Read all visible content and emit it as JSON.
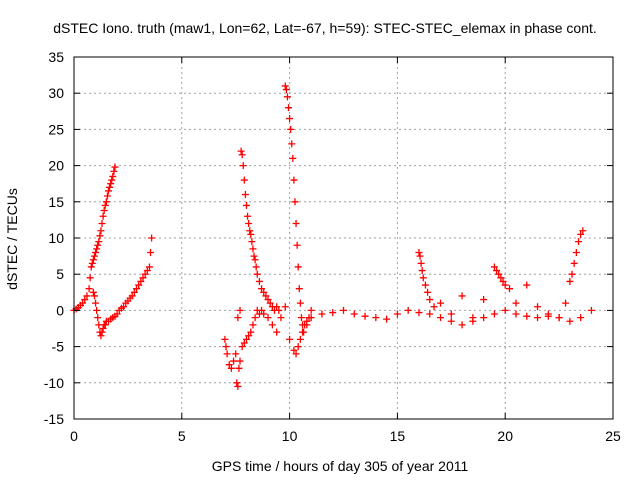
{
  "chart_data": {
    "type": "scatter",
    "title": "dSTEC Iono. truth (maw1, Lon=62, Lat=-67, h=59): STEC-STEC_elemax in phase cont.",
    "xlabel": "GPS time / hours of day 305 of year 2011",
    "ylabel": "dSTEC  / TECUs",
    "xlim": [
      0,
      25
    ],
    "ylim": [
      -15,
      35
    ],
    "xticks": [
      0,
      5,
      10,
      15,
      20,
      25
    ],
    "yticks": [
      -15,
      -10,
      -5,
      0,
      5,
      10,
      15,
      20,
      25,
      30,
      35
    ],
    "grid": true,
    "marker": "+",
    "color": "#ff0000",
    "series": [
      {
        "x": [
          0.0,
          0.1,
          0.2,
          0.3,
          0.4,
          0.5,
          0.6,
          0.7,
          0.75,
          0.8,
          0.85,
          0.9,
          0.95,
          1.0,
          1.05,
          1.1,
          1.15,
          1.2,
          1.25,
          1.3,
          1.35,
          1.4,
          1.45,
          1.5,
          1.55,
          1.6,
          1.65,
          1.7,
          1.75,
          1.8,
          1.85,
          1.9
        ],
        "y": [
          0.0,
          0.2,
          0.4,
          0.7,
          1.0,
          1.5,
          2.0,
          3.0,
          4.5,
          6.0,
          6.5,
          7.0,
          7.5,
          8.0,
          8.5,
          9.0,
          9.5,
          10.3,
          11.0,
          12.0,
          13.0,
          13.8,
          14.5,
          15.0,
          15.8,
          16.5,
          17.0,
          17.5,
          18.0,
          18.5,
          19.2,
          19.8
        ]
      },
      {
        "x": [
          0.9,
          0.95,
          1.0,
          1.05,
          1.1,
          1.15,
          1.2,
          1.25,
          1.3,
          1.35,
          1.4,
          1.45,
          1.5,
          1.6,
          1.7,
          1.8,
          1.9,
          2.0,
          2.1,
          2.2,
          2.3,
          2.4,
          2.5,
          2.6,
          2.7,
          2.8,
          2.9,
          3.0,
          3.1,
          3.2,
          3.3,
          3.4,
          3.5,
          3.55,
          3.6
        ],
        "y": [
          2.5,
          2.0,
          1.0,
          0.0,
          -1.0,
          -2.0,
          -3.0,
          -3.5,
          -3.0,
          -2.5,
          -2.0,
          -2.0,
          -1.5,
          -1.5,
          -1.2,
          -1.0,
          -0.8,
          -0.5,
          0.0,
          0.3,
          0.5,
          1.0,
          1.3,
          1.7,
          2.0,
          2.5,
          3.0,
          3.5,
          4.0,
          4.5,
          5.0,
          5.5,
          6.0,
          8.0,
          10.0
        ]
      },
      {
        "x": [
          7.0,
          7.05,
          7.1,
          7.2,
          7.3,
          7.4,
          7.5,
          7.55,
          7.6,
          7.65,
          7.7,
          7.8,
          7.9,
          8.0,
          8.1,
          8.2,
          8.3,
          8.4,
          8.5,
          8.6,
          8.7,
          8.8,
          9.0,
          9.2,
          9.4,
          9.6,
          9.8,
          10.0,
          10.2,
          10.3,
          10.4,
          10.5,
          10.6,
          10.8,
          11.0,
          11.5,
          12.0,
          12.5,
          13.0,
          13.5,
          14.0,
          14.5,
          15.0,
          15.5,
          16.0,
          16.5,
          17.0,
          17.5,
          18.0,
          18.5,
          19.0,
          19.5,
          20.0,
          20.5,
          21.0,
          21.5,
          22.0,
          22.5,
          23.0,
          23.5,
          24.0
        ],
        "y": [
          -4.0,
          -5.0,
          -6.0,
          -7.5,
          -8.0,
          -7.0,
          -6.0,
          -10.0,
          -10.5,
          -8.0,
          -7.0,
          -5.0,
          -4.5,
          -4.0,
          -3.5,
          -3.0,
          -2.0,
          -1.0,
          0.0,
          -0.5,
          0.0,
          -0.5,
          -1.0,
          -2.0,
          -3.0,
          -1.0,
          0.5,
          -4.0,
          -5.5,
          -6.0,
          -5.0,
          -4.0,
          -3.0,
          -2.0,
          -1.0,
          -0.5,
          -0.3,
          0.0,
          -0.5,
          -0.8,
          -1.0,
          -1.2,
          -0.5,
          0.0,
          -0.3,
          -0.5,
          -1.0,
          -1.5,
          -2.0,
          -1.5,
          -1.0,
          -0.5,
          0.0,
          -0.5,
          -0.8,
          -1.0,
          -0.8,
          -1.0,
          -1.5,
          -1.0,
          0.0
        ]
      },
      {
        "x": [
          7.6,
          7.7,
          7.75,
          7.8,
          7.85,
          7.9,
          7.95,
          8.0,
          8.05,
          8.1,
          8.15,
          8.2,
          8.25,
          8.3,
          8.35,
          8.4,
          8.45,
          8.5,
          8.6,
          8.7,
          8.8,
          8.9,
          9.0,
          9.1,
          9.2,
          9.3,
          9.4,
          9.5
        ],
        "y": [
          -1.0,
          0.0,
          22.0,
          21.5,
          20.0,
          18.0,
          16.0,
          14.5,
          13.0,
          12.0,
          11.0,
          10.5,
          9.5,
          8.5,
          7.5,
          7.0,
          6.0,
          5.0,
          4.0,
          3.0,
          2.5,
          2.0,
          1.5,
          1.0,
          0.5,
          0.0,
          0.5,
          0.0
        ]
      },
      {
        "x": [
          9.8,
          9.85,
          9.9,
          9.95,
          10.0,
          10.05,
          10.1,
          10.15,
          10.2,
          10.25,
          10.3,
          10.35,
          10.4,
          10.45,
          10.5,
          10.55,
          10.6,
          10.65,
          10.7,
          10.8,
          10.9,
          11.0
        ],
        "y": [
          31.0,
          30.5,
          29.5,
          28.0,
          26.5,
          25.0,
          23.0,
          21.0,
          18.0,
          15.0,
          12.0,
          9.0,
          6.0,
          3.0,
          1.0,
          -1.0,
          -2.0,
          -3.0,
          -2.0,
          -1.5,
          -1.0,
          0.0
        ]
      },
      {
        "x": [
          16.0,
          16.05,
          16.1,
          16.15,
          16.2,
          16.3,
          16.4,
          16.5,
          16.7,
          17.0,
          17.5,
          18.0,
          18.5,
          19.0,
          19.5,
          19.6,
          19.7,
          19.8,
          19.9,
          20.0,
          20.2,
          20.5,
          21.0,
          21.5,
          22.0,
          22.5,
          22.8,
          23.0,
          23.1,
          23.2,
          23.3,
          23.4,
          23.5,
          23.6
        ],
        "y": [
          8.0,
          7.5,
          6.5,
          5.5,
          4.5,
          3.5,
          2.5,
          1.5,
          0.5,
          1.0,
          -0.5,
          2.0,
          -1.0,
          1.5,
          6.0,
          5.5,
          5.0,
          4.5,
          4.0,
          3.5,
          3.0,
          1.0,
          3.5,
          0.5,
          -0.5,
          -1.0,
          1.0,
          4.0,
          5.0,
          6.5,
          8.0,
          9.5,
          10.5,
          11.0
        ]
      }
    ]
  }
}
